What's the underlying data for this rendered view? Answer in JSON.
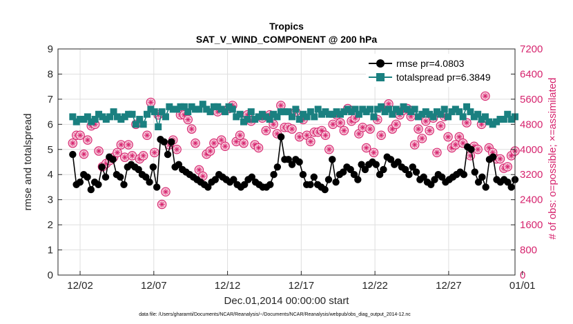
{
  "chart_data": {
    "type": "line",
    "title": "Tropics",
    "subtitle": "SAT_V_WIND_COMPONENT @ 200 hPa",
    "xlabel": "Dec.01,2014 00:00:00 start",
    "ylabel": "rmse and totalspread",
    "y2label": "# of obs: o=possible; ×=assimilated",
    "footnote": "data file: /Users/gharamti/Documents/NCAR/Reanalysis/~/Documents/NCAR/Reanalysis/webpub/obs_diag_output_2014-12.nc",
    "xlim": [
      0.5,
      31.5
    ],
    "ylim": [
      0,
      9
    ],
    "y2lim": [
      0,
      7200
    ],
    "x_ticks": [
      {
        "x": 2,
        "label": "12/02"
      },
      {
        "x": 7,
        "label": "12/07"
      },
      {
        "x": 12,
        "label": "12/12"
      },
      {
        "x": 17,
        "label": "12/17"
      },
      {
        "x": 22,
        "label": "12/22"
      },
      {
        "x": 27,
        "label": "12/27"
      },
      {
        "x": 32,
        "label": "01/01"
      }
    ],
    "y_ticks": [
      "0",
      "1",
      "2",
      "3",
      "4",
      "5",
      "6",
      "7",
      "8",
      "9"
    ],
    "y2_ticks": [
      "0",
      "800",
      "1600",
      "2400",
      "3200",
      "4000",
      "4800",
      "5600",
      "6400",
      "7200"
    ],
    "grid": true,
    "legend_position": "top-right",
    "legend_entries": [
      "rmse pr=4.0803",
      "totalspread pr=6.3849"
    ],
    "colors": {
      "rmse": "#000000",
      "spread": "#1a8080",
      "obs": "#d6246e"
    },
    "series": [
      {
        "name": "rmse pr=4.0803",
        "axis": "left",
        "marker": "circle",
        "color": "#000000",
        "values": [
          4.8,
          3.6,
          3.7,
          4.0,
          3.9,
          3.4,
          3.7,
          3.6,
          4.3,
          3.9,
          4.7,
          4.6,
          4.0,
          3.9,
          3.6,
          4.3,
          4.4,
          4.3,
          4.2,
          4.0,
          3.9,
          3.7,
          4.3,
          3.5,
          5.4,
          5.3,
          4.8,
          5.3,
          4.3,
          4.4,
          4.2,
          4.1,
          4.0,
          3.9,
          3.8,
          3.7,
          3.6,
          3.5,
          3.7,
          3.8,
          4.0,
          3.9,
          3.8,
          3.7,
          3.8,
          3.6,
          3.5,
          3.6,
          3.8,
          3.9,
          3.7,
          3.6,
          3.5,
          3.5,
          3.6,
          4.0,
          4.3,
          5.5,
          4.6,
          4.6,
          4.4,
          4.6,
          4.5,
          4.0,
          3.6,
          3.6,
          3.9,
          3.6,
          3.5,
          3.4,
          3.8,
          4.6,
          3.7,
          4.0,
          4.1,
          4.3,
          4.2,
          4.0,
          3.8,
          4.4,
          4.2,
          4.4,
          4.5,
          4.4,
          4.0,
          4.2,
          4.7,
          4.6,
          4.4,
          4.5,
          4.3,
          4.2,
          4.0,
          4.3,
          4.1,
          3.8,
          3.9,
          3.7,
          3.6,
          3.8,
          4.0,
          3.9,
          3.7,
          3.8,
          3.9,
          4.0,
          4.1,
          4.0,
          5.1,
          5.0,
          4.1,
          3.7,
          3.9,
          3.5,
          4.6,
          4.7,
          3.8,
          3.7,
          3.8,
          3.7,
          3.5,
          3.8
        ]
      },
      {
        "name": "totalspread pr=6.3849",
        "axis": "left",
        "marker": "square",
        "color": "#1a8080",
        "values": [
          6.3,
          6.1,
          6.2,
          6.2,
          6.3,
          6.1,
          6.2,
          6.4,
          6.3,
          6.2,
          6.3,
          6.5,
          6.3,
          6.2,
          6.3,
          6.4,
          6.4,
          6.0,
          6.2,
          6.0,
          6.4,
          6.6,
          6.5,
          5.9,
          6.5,
          6.3,
          6.7,
          6.6,
          6.6,
          6.7,
          6.7,
          6.5,
          6.7,
          6.6,
          6.6,
          6.8,
          6.6,
          6.5,
          6.7,
          6.7,
          6.6,
          6.5,
          6.7,
          6.6,
          6.3,
          6.4,
          6.1,
          6.2,
          6.5,
          6.2,
          6.3,
          6.4,
          6.3,
          6.2,
          6.4,
          6.3,
          6.5,
          6.5,
          6.5,
          6.3,
          6.6,
          6.2,
          6.4,
          6.3,
          6.5,
          6.3,
          6.6,
          6.4,
          6.5,
          6.4,
          6.4,
          6.5,
          6.4,
          6.5,
          6.6,
          6.5,
          6.6,
          6.4,
          6.6,
          6.5,
          6.6,
          6.3,
          6.6,
          6.7,
          6.5,
          6.6,
          6.4,
          6.6,
          6.5,
          6.7,
          6.6,
          6.5,
          6.6,
          6.3,
          6.4,
          6.5,
          6.4,
          6.3,
          6.5,
          6.4,
          6.6,
          6.3,
          6.5,
          6.6,
          6.5,
          6.3,
          6.7,
          6.5,
          6.3,
          6.4,
          6.2,
          6.3,
          6.1,
          6.0,
          6.1,
          6.2,
          6.2,
          6.4,
          6.2,
          6.3
        ]
      },
      {
        "name": "# of obs",
        "axis": "right",
        "marker": "circle-star",
        "color": "#d6246e",
        "values": [
          4200,
          4450,
          4450,
          3850,
          4300,
          4750,
          4800,
          3950,
          3450,
          3550,
          3650,
          3750,
          3900,
          4150,
          3750,
          4150,
          3800,
          4800,
          3700,
          3800,
          4450,
          5500,
          3900,
          5100,
          2250,
          2650,
          4150,
          4300,
          4000,
          5100,
          5100,
          4950,
          4650,
          4200,
          3350,
          3150,
          3850,
          3950,
          4200,
          5200,
          4300,
          4100,
          5300,
          5400,
          4250,
          4450,
          4200,
          5100,
          4900,
          4150,
          4050,
          5000,
          4600,
          5100,
          4800,
          4500,
          5400,
          4700,
          4700,
          4650,
          5200,
          4400,
          4950,
          4450,
          4250,
          4550,
          4550,
          4600,
          4450,
          4000,
          4800,
          5100,
          4850,
          4600,
          5300,
          4900,
          5000,
          4500,
          4700,
          4050,
          4650,
          3900,
          4950,
          4450,
          5300,
          5450,
          4650,
          4800,
          5100,
          5250,
          5300,
          5050,
          4150,
          4650,
          4350,
          4900,
          4600,
          5000,
          3900,
          4750,
          5050,
          4400,
          4050,
          4150,
          4400,
          4200,
          4850,
          3800,
          4100,
          4000,
          4800,
          5700,
          4050,
          3900,
          3700,
          3700,
          3400,
          3450,
          3800,
          3950
        ]
      }
    ]
  }
}
